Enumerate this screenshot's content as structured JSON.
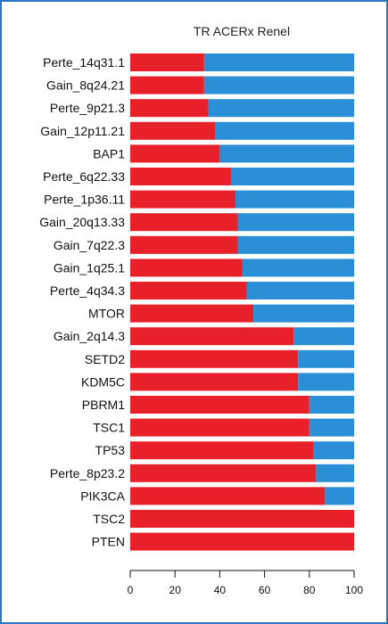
{
  "chart_data": {
    "type": "bar",
    "orientation": "horizontal",
    "stacked": true,
    "title": "TR ACERx Renel",
    "categories": [
      "Perte_14q31.1",
      "Gain_8q24.21",
      "Perte_9p21.3",
      "Gain_12p11.21",
      "BAP1",
      "Perte_6q22.33",
      "Perte_1p36.11",
      "Gain_20q13.33",
      "Gain_7q22.3",
      "Gain_1q25.1",
      "Perte_4q34.3",
      "MTOR",
      "Gain_2q14.3",
      "SETD2",
      "KDM5C",
      "PBRM1",
      "TSC1",
      "TP53",
      "Perte_8p23.2",
      "PIK3CA",
      "TSC2",
      "PTEN"
    ],
    "series": [
      {
        "color": "#e8202a",
        "values": [
          33,
          33,
          35,
          38,
          40,
          45,
          47,
          48,
          48,
          50,
          52,
          55,
          73,
          75,
          75,
          80,
          80,
          82,
          83,
          87,
          100,
          100
        ]
      },
      {
        "color": "#2a8fd6",
        "values": [
          67,
          67,
          65,
          62,
          60,
          55,
          53,
          52,
          52,
          50,
          48,
          45,
          27,
          25,
          25,
          20,
          20,
          18,
          17,
          13,
          0,
          0
        ]
      }
    ],
    "xlim": [
      0,
      100
    ],
    "xticks": [
      0,
      20,
      40,
      60,
      80,
      100
    ],
    "xlabel": "",
    "ylabel": "",
    "grid": false,
    "legend": "none"
  },
  "colors": {
    "frame_border": "#2a78c4",
    "axis": "#111111"
  }
}
